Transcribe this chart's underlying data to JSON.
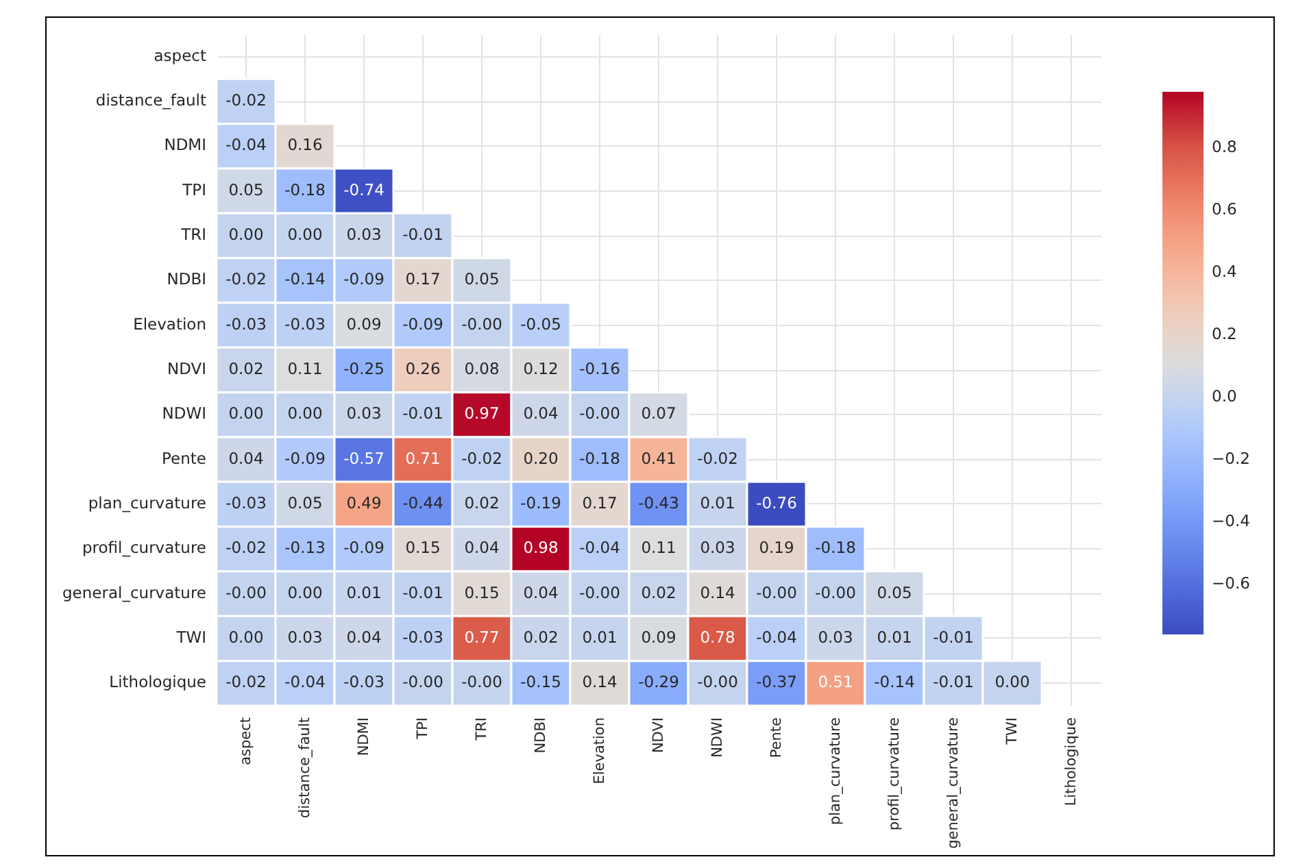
{
  "chart_data": {
    "type": "heatmap",
    "categories": [
      "aspect",
      "distance_fault",
      "NDMI",
      "TPI",
      "TRI",
      "NDBI",
      "Elevation",
      "NDVI",
      "NDWI",
      "Pente",
      "plan_curvature",
      "profil_curvature",
      "general_curvature",
      "TWI",
      "Lithologique"
    ],
    "y_categories": [
      "aspect",
      "distance_fault",
      "NDMI",
      "TPI",
      "TRI",
      "NDBI",
      "Elevation",
      "NDVI",
      "NDWI",
      "Pente",
      "plan_curvature",
      "profil_curvature",
      "general_curvature",
      "TWI",
      "Lithologique"
    ],
    "cells": [
      [
        null,
        null,
        null,
        null,
        null,
        null,
        null,
        null,
        null,
        null,
        null,
        null,
        null,
        null,
        null
      ],
      [
        -0.02,
        null,
        null,
        null,
        null,
        null,
        null,
        null,
        null,
        null,
        null,
        null,
        null,
        null,
        null
      ],
      [
        -0.04,
        0.16,
        null,
        null,
        null,
        null,
        null,
        null,
        null,
        null,
        null,
        null,
        null,
        null,
        null
      ],
      [
        0.05,
        -0.18,
        -0.74,
        null,
        null,
        null,
        null,
        null,
        null,
        null,
        null,
        null,
        null,
        null,
        null
      ],
      [
        0.0,
        0.0,
        0.03,
        -0.01,
        null,
        null,
        null,
        null,
        null,
        null,
        null,
        null,
        null,
        null,
        null
      ],
      [
        -0.02,
        -0.14,
        -0.09,
        0.17,
        0.05,
        null,
        null,
        null,
        null,
        null,
        null,
        null,
        null,
        null,
        null
      ],
      [
        -0.03,
        -0.03,
        0.09,
        -0.09,
        0.0,
        -0.05,
        null,
        null,
        null,
        null,
        null,
        null,
        null,
        null,
        null
      ],
      [
        0.02,
        0.11,
        -0.25,
        0.26,
        0.08,
        0.12,
        -0.16,
        null,
        null,
        null,
        null,
        null,
        null,
        null,
        null
      ],
      [
        0.0,
        0.0,
        0.03,
        -0.01,
        0.97,
        0.04,
        0.0,
        0.07,
        null,
        null,
        null,
        null,
        null,
        null,
        null
      ],
      [
        0.04,
        -0.09,
        -0.57,
        0.71,
        -0.02,
        0.2,
        -0.18,
        0.41,
        -0.02,
        null,
        null,
        null,
        null,
        null,
        null
      ],
      [
        -0.03,
        0.05,
        0.49,
        -0.44,
        0.02,
        -0.19,
        0.17,
        -0.43,
        0.01,
        -0.76,
        null,
        null,
        null,
        null,
        null
      ],
      [
        -0.02,
        -0.13,
        -0.09,
        0.15,
        0.04,
        0.98,
        -0.04,
        0.11,
        0.03,
        0.19,
        -0.18,
        null,
        null,
        null,
        null
      ],
      [
        0.0,
        0.0,
        0.01,
        -0.01,
        0.15,
        0.04,
        0.0,
        0.02,
        0.14,
        0.0,
        0.0,
        0.05,
        null,
        null,
        null
      ],
      [
        0.0,
        0.03,
        0.04,
        -0.03,
        0.77,
        0.02,
        0.01,
        0.09,
        0.78,
        -0.04,
        0.03,
        0.01,
        -0.01,
        null,
        null
      ],
      [
        -0.02,
        -0.04,
        -0.03,
        0.0,
        0.0,
        -0.15,
        0.14,
        -0.29,
        0.0,
        -0.37,
        0.51,
        -0.14,
        -0.01,
        0.0,
        null
      ]
    ],
    "cell_labels": [
      [
        null,
        null,
        null,
        null,
        null,
        null,
        null,
        null,
        null,
        null,
        null,
        null,
        null,
        null,
        null
      ],
      [
        "-0.02",
        null,
        null,
        null,
        null,
        null,
        null,
        null,
        null,
        null,
        null,
        null,
        null,
        null,
        null
      ],
      [
        "-0.04",
        "0.16",
        null,
        null,
        null,
        null,
        null,
        null,
        null,
        null,
        null,
        null,
        null,
        null,
        null
      ],
      [
        "0.05",
        "-0.18",
        "-0.74",
        null,
        null,
        null,
        null,
        null,
        null,
        null,
        null,
        null,
        null,
        null,
        null
      ],
      [
        "0.00",
        "0.00",
        "0.03",
        "-0.01",
        null,
        null,
        null,
        null,
        null,
        null,
        null,
        null,
        null,
        null,
        null
      ],
      [
        "-0.02",
        "-0.14",
        "-0.09",
        "0.17",
        "0.05",
        null,
        null,
        null,
        null,
        null,
        null,
        null,
        null,
        null,
        null
      ],
      [
        "-0.03",
        "-0.03",
        "0.09",
        "-0.09",
        "-0.00",
        "-0.05",
        null,
        null,
        null,
        null,
        null,
        null,
        null,
        null,
        null
      ],
      [
        "0.02",
        "0.11",
        "-0.25",
        "0.26",
        "0.08",
        "0.12",
        "-0.16",
        null,
        null,
        null,
        null,
        null,
        null,
        null,
        null
      ],
      [
        "0.00",
        "0.00",
        "0.03",
        "-0.01",
        "0.97",
        "0.04",
        "-0.00",
        "0.07",
        null,
        null,
        null,
        null,
        null,
        null,
        null
      ],
      [
        "0.04",
        "-0.09",
        "-0.57",
        "0.71",
        "-0.02",
        "0.20",
        "-0.18",
        "0.41",
        "-0.02",
        null,
        null,
        null,
        null,
        null,
        null
      ],
      [
        "-0.03",
        "0.05",
        "0.49",
        "-0.44",
        "0.02",
        "-0.19",
        "0.17",
        "-0.43",
        "0.01",
        "-0.76",
        null,
        null,
        null,
        null,
        null
      ],
      [
        "-0.02",
        "-0.13",
        "-0.09",
        "0.15",
        "0.04",
        "0.98",
        "-0.04",
        "0.11",
        "0.03",
        "0.19",
        "-0.18",
        null,
        null,
        null,
        null
      ],
      [
        "-0.00",
        "0.00",
        "0.01",
        "-0.01",
        "0.15",
        "0.04",
        "-0.00",
        "0.02",
        "0.14",
        "-0.00",
        "-0.00",
        "0.05",
        null,
        null,
        null
      ],
      [
        "0.00",
        "0.03",
        "0.04",
        "-0.03",
        "0.77",
        "0.02",
        "0.01",
        "0.09",
        "0.78",
        "-0.04",
        "0.03",
        "0.01",
        "-0.01",
        null,
        null
      ],
      [
        "-0.02",
        "-0.04",
        "-0.03",
        "-0.00",
        "-0.00",
        "-0.15",
        "0.14",
        "-0.29",
        "-0.00",
        "-0.37",
        "0.51",
        "-0.14",
        "-0.01",
        "0.00",
        null
      ]
    ],
    "clim": [
      -0.76,
      0.98
    ],
    "cticks": [
      {
        "value": -0.6,
        "label": "−0.6"
      },
      {
        "value": -0.4,
        "label": "−0.4"
      },
      {
        "value": -0.2,
        "label": "−0.2"
      },
      {
        "value": 0,
        "label": "0.0"
      },
      0.2,
      0.4,
      0.6,
      0.8
    ],
    "grid": true
  }
}
